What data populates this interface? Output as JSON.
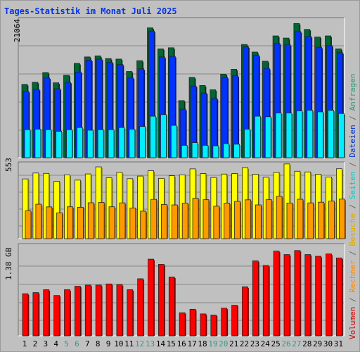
{
  "title": "Tages-Statistik im Monat Juli 2025",
  "chart_data": [
    {
      "type": "bar",
      "panel": "top",
      "ymax_label": "21064",
      "ylim": [
        0,
        26000
      ],
      "grid": true,
      "categories": [
        "1",
        "2",
        "3",
        "4",
        "5",
        "6",
        "7",
        "8",
        "9",
        "10",
        "11",
        "12",
        "13",
        "14",
        "15",
        "16",
        "17",
        "18",
        "19",
        "20",
        "21",
        "22",
        "23",
        "24",
        "25",
        "26",
        "27",
        "28",
        "29",
        "30",
        "31"
      ],
      "series": [
        {
          "name": "Anfragen",
          "color": "#006633",
          "values": [
            13600,
            14000,
            15800,
            13900,
            15300,
            17500,
            18700,
            18900,
            18400,
            18300,
            16000,
            18000,
            24100,
            20200,
            20400,
            10600,
            14900,
            13400,
            12600,
            15500,
            16400,
            21000,
            19600,
            17900,
            22600,
            22200,
            24900,
            23800,
            22400,
            22600,
            20200
          ]
        },
        {
          "name": "Dateien",
          "color": "#0033ff",
          "values": [
            12300,
            12700,
            14800,
            12800,
            14000,
            15900,
            18100,
            18300,
            17700,
            17300,
            14800,
            16500,
            23500,
            18700,
            18800,
            9000,
            13300,
            12000,
            11000,
            14900,
            15200,
            20600,
            19000,
            16600,
            21200,
            21000,
            23400,
            22500,
            20500,
            20800,
            19500
          ]
        },
        {
          "name": "Seiten",
          "color": "#00eeff",
          "values": [
            5200,
            5300,
            5200,
            4900,
            5200,
            5600,
            5100,
            5200,
            5200,
            5600,
            5300,
            5800,
            7700,
            8000,
            6000,
            2300,
            2800,
            2300,
            2200,
            2600,
            2500,
            5300,
            7700,
            7600,
            8300,
            8300,
            8700,
            8800,
            8500,
            8800,
            8200
          ]
        }
      ]
    },
    {
      "type": "bar",
      "panel": "middle",
      "ymax_label": "553",
      "ylim": [
        0,
        650
      ],
      "grid": true,
      "categories": [
        "1",
        "2",
        "3",
        "4",
        "5",
        "6",
        "7",
        "8",
        "9",
        "10",
        "11",
        "12",
        "13",
        "14",
        "15",
        "16",
        "17",
        "18",
        "19",
        "20",
        "21",
        "22",
        "23",
        "24",
        "25",
        "26",
        "27",
        "28",
        "29",
        "30",
        "31"
      ],
      "series": [
        {
          "name": "Besuche",
          "color": "#ffff00",
          "values": [
            506,
            556,
            553,
            485,
            541,
            496,
            548,
            608,
            515,
            561,
            508,
            530,
            575,
            511,
            533,
            541,
            591,
            551,
            518,
            547,
            551,
            602,
            546,
            520,
            561,
            633,
            571,
            565,
            546,
            522,
            592
          ]
        },
        {
          "name": "Rechner",
          "color": "#ff9900",
          "values": [
            237,
            292,
            269,
            219,
            270,
            266,
            304,
            307,
            270,
            303,
            259,
            233,
            333,
            290,
            286,
            301,
            342,
            330,
            275,
            301,
            316,
            329,
            286,
            330,
            359,
            302,
            334,
            303,
            309,
            318,
            335
          ]
        }
      ]
    },
    {
      "type": "bar",
      "panel": "bottom",
      "ymax_label": "1.38 GB",
      "ylim": [
        0,
        1.6
      ],
      "grid": true,
      "categories": [
        "1",
        "2",
        "3",
        "4",
        "5",
        "6",
        "7",
        "8",
        "9",
        "10",
        "11",
        "12",
        "13",
        "14",
        "15",
        "16",
        "17",
        "18",
        "19",
        "20",
        "21",
        "22",
        "23",
        "24",
        "25",
        "26",
        "27",
        "28",
        "29",
        "30",
        "31"
      ],
      "series": [
        {
          "name": "Volumen",
          "color": "#ff0000",
          "values": [
            0.73,
            0.75,
            0.8,
            0.7,
            0.8,
            0.86,
            0.88,
            0.88,
            0.9,
            0.89,
            0.8,
            0.99,
            1.33,
            1.24,
            1.02,
            0.4,
            0.46,
            0.38,
            0.36,
            0.48,
            0.53,
            0.85,
            1.3,
            1.22,
            1.47,
            1.41,
            1.48,
            1.41,
            1.38,
            1.42,
            1.35
          ]
        }
      ]
    }
  ],
  "day_labels": [
    {
      "text": "1",
      "color": "#000000"
    },
    {
      "text": "2",
      "color": "#000000"
    },
    {
      "text": "3",
      "color": "#000000"
    },
    {
      "text": "4",
      "color": "#000000"
    },
    {
      "text": "5",
      "color": "#339988"
    },
    {
      "text": "6",
      "color": "#339988"
    },
    {
      "text": "7",
      "color": "#000000"
    },
    {
      "text": "8",
      "color": "#000000"
    },
    {
      "text": "9",
      "color": "#000000"
    },
    {
      "text": "10",
      "color": "#000000"
    },
    {
      "text": "11",
      "color": "#000000"
    },
    {
      "text": "12",
      "color": "#339988"
    },
    {
      "text": "13",
      "color": "#339988"
    },
    {
      "text": "14",
      "color": "#000000"
    },
    {
      "text": "15",
      "color": "#000000"
    },
    {
      "text": "16",
      "color": "#000000"
    },
    {
      "text": "17",
      "color": "#000000"
    },
    {
      "text": "18",
      "color": "#000000"
    },
    {
      "text": "19",
      "color": "#339988"
    },
    {
      "text": "20",
      "color": "#339988"
    },
    {
      "text": "21",
      "color": "#000000"
    },
    {
      "text": "22",
      "color": "#000000"
    },
    {
      "text": "23",
      "color": "#000000"
    },
    {
      "text": "24",
      "color": "#000000"
    },
    {
      "text": "25",
      "color": "#000000"
    },
    {
      "text": "26",
      "color": "#339988"
    },
    {
      "text": "27",
      "color": "#339988"
    },
    {
      "text": "28",
      "color": "#000000"
    },
    {
      "text": "29",
      "color": "#000000"
    },
    {
      "text": "30",
      "color": "#000000"
    },
    {
      "text": "31",
      "color": "#000000"
    }
  ],
  "legend": [
    {
      "text": "Volumen",
      "color": "#cc0000"
    },
    {
      "text": " / ",
      "color": "#666666"
    },
    {
      "text": "Rechner",
      "color": "#ff8800"
    },
    {
      "text": " / ",
      "color": "#666666"
    },
    {
      "text": "Besuche",
      "color": "#ddaa00"
    },
    {
      "text": " / ",
      "color": "#666666"
    },
    {
      "text": "Seiten",
      "color": "#00cccc"
    },
    {
      "text": " / ",
      "color": "#666666"
    },
    {
      "text": "Dateien",
      "color": "#0033cc"
    },
    {
      "text": " / ",
      "color": "#666666"
    },
    {
      "text": "Anfragen",
      "color": "#339977"
    }
  ]
}
